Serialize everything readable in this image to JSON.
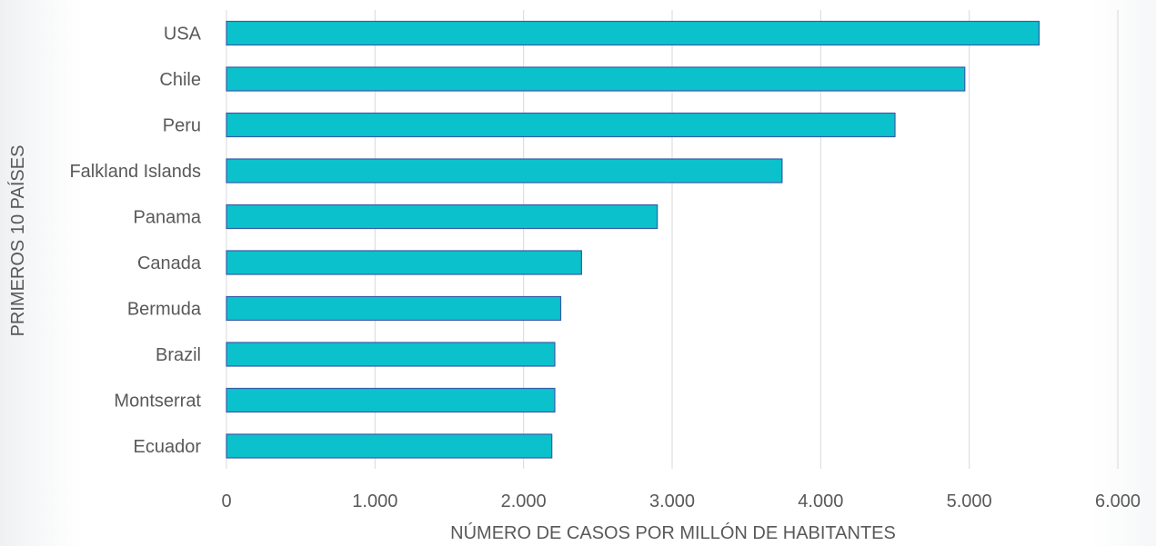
{
  "chart_data": {
    "type": "bar",
    "orientation": "horizontal",
    "categories": [
      "USA",
      "Chile",
      "Peru",
      "Falkland Islands",
      "Panama",
      "Canada",
      "Bermuda",
      "Brazil",
      "Montserrat",
      "Ecuador"
    ],
    "values": [
      5470,
      4970,
      4500,
      3740,
      2900,
      2390,
      2250,
      2210,
      2210,
      2190
    ],
    "xlabel": "NÚMERO DE CASOS POR MILLÓN DE HABITANTES",
    "ylabel": "PRIMEROS 10 PAÍSES",
    "xlim": [
      0,
      6000
    ],
    "xticks": [
      "0",
      "1.000",
      "2.000",
      "3.000",
      "4.000",
      "5.000",
      "6.000"
    ],
    "grid": "vertical",
    "bar_color": "#0BC2CC",
    "bar_edge_color": "#3A5BA8"
  }
}
